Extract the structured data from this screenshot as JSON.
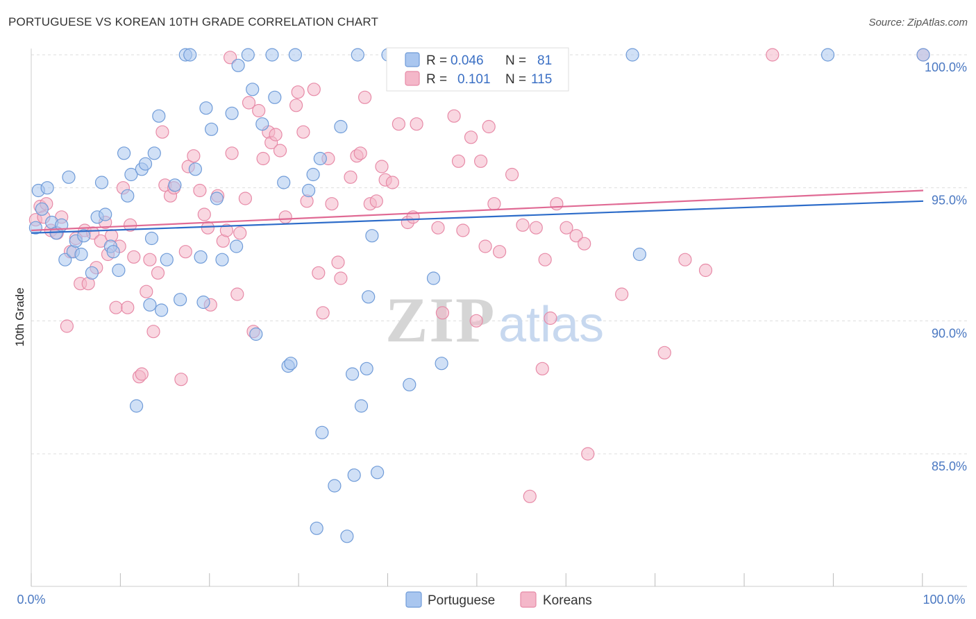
{
  "title": "PORTUGUESE VS KOREAN 10TH GRADE CORRELATION CHART",
  "source": "Source: ZipAtlas.com",
  "watermark": {
    "zip": "ZIP",
    "atlas": "atlas"
  },
  "colors": {
    "portuguese_fill": "#a9c6ef",
    "portuguese_stroke": "#6f9bd8",
    "portuguese_line": "#2d6cc9",
    "koreans_fill": "#f4b7c9",
    "koreans_stroke": "#e78aa7",
    "koreans_line": "#e06a94",
    "axis_label": "#4a78c2",
    "grid": "#dddddd"
  },
  "legend": {
    "rows": [
      {
        "r_label": "R =",
        "r_value": "0.046",
        "n_label": "N =",
        "n_value": "81",
        "series": "portuguese"
      },
      {
        "r_label": "R =",
        "r_value": "0.101",
        "n_label": "N =",
        "n_value": "115",
        "series": "koreans"
      }
    ]
  },
  "bottom_legend": [
    "Portuguese",
    "Koreans"
  ],
  "chart_data": {
    "type": "scatter",
    "title": "PORTUGUESE VS KOREAN 10TH GRADE CORRELATION CHART",
    "xlabel": "",
    "ylabel": "10th Grade",
    "xlim": [
      0,
      100
    ],
    "ylim": [
      80.5,
      101.2
    ],
    "x_tick_labels": [
      "0.0%",
      "100.0%"
    ],
    "y_ticks": [
      85,
      90,
      95,
      100
    ],
    "y_tick_labels": [
      "85.0%",
      "90.0%",
      "95.0%",
      "100.0%"
    ],
    "grid": true,
    "legend_position": "top-center",
    "series": [
      {
        "name": "Portuguese",
        "r": 0.046,
        "n": 81,
        "trend": {
          "x": [
            0,
            100
          ],
          "y": [
            93.3,
            94.5
          ]
        },
        "points": [
          [
            0.5,
            93.5
          ],
          [
            0.8,
            94.9
          ],
          [
            1.2,
            94.2
          ],
          [
            1.8,
            95.0
          ],
          [
            2.3,
            93.7
          ],
          [
            2.8,
            93.3
          ],
          [
            3.4,
            93.6
          ],
          [
            3.8,
            92.3
          ],
          [
            4.2,
            95.4
          ],
          [
            4.7,
            92.6
          ],
          [
            5.0,
            93.0
          ],
          [
            5.6,
            92.5
          ],
          [
            5.9,
            93.2
          ],
          [
            6.8,
            91.8
          ],
          [
            7.4,
            93.9
          ],
          [
            7.9,
            95.2
          ],
          [
            8.3,
            94.0
          ],
          [
            8.9,
            92.8
          ],
          [
            9.2,
            92.6
          ],
          [
            9.8,
            91.9
          ],
          [
            10.4,
            96.3
          ],
          [
            10.8,
            94.7
          ],
          [
            11.2,
            95.5
          ],
          [
            11.8,
            86.8
          ],
          [
            12.4,
            95.7
          ],
          [
            12.8,
            95.9
          ],
          [
            13.3,
            90.6
          ],
          [
            13.8,
            96.3
          ],
          [
            14.3,
            97.7
          ],
          [
            14.6,
            90.4
          ],
          [
            15.2,
            92.3
          ],
          [
            16.1,
            95.1
          ],
          [
            16.7,
            90.8
          ],
          [
            17.3,
            100.0
          ],
          [
            17.8,
            100.0
          ],
          [
            18.4,
            95.7
          ],
          [
            19.0,
            92.4
          ],
          [
            19.3,
            90.7
          ],
          [
            19.6,
            98.0
          ],
          [
            20.2,
            97.2
          ],
          [
            20.8,
            94.6
          ],
          [
            21.4,
            92.3
          ],
          [
            22.5,
            97.8
          ],
          [
            23.0,
            92.8
          ],
          [
            23.2,
            99.6
          ],
          [
            24.3,
            100.0
          ],
          [
            24.8,
            98.7
          ],
          [
            25.2,
            89.5
          ],
          [
            25.9,
            97.4
          ],
          [
            27.0,
            100.0
          ],
          [
            27.3,
            98.4
          ],
          [
            28.3,
            95.2
          ],
          [
            28.8,
            88.3
          ],
          [
            29.1,
            88.4
          ],
          [
            29.6,
            100.0
          ],
          [
            31.1,
            94.9
          ],
          [
            31.6,
            95.5
          ],
          [
            32.4,
            96.1
          ],
          [
            32.6,
            85.8
          ],
          [
            34.0,
            83.8
          ],
          [
            34.7,
            97.3
          ],
          [
            35.4,
            81.9
          ],
          [
            36.2,
            84.2
          ],
          [
            36.6,
            100.0
          ],
          [
            37.6,
            88.2
          ],
          [
            37.8,
            90.9
          ],
          [
            37.0,
            86.8
          ],
          [
            38.2,
            93.2
          ],
          [
            38.8,
            84.3
          ],
          [
            42.4,
            87.6
          ],
          [
            45.1,
            91.6
          ],
          [
            46.0,
            88.4
          ],
          [
            48.2,
            100.0
          ],
          [
            32.0,
            82.2
          ],
          [
            40.0,
            100.0
          ],
          [
            67.4,
            100.0
          ],
          [
            68.2,
            92.5
          ],
          [
            89.3,
            100.0
          ],
          [
            100.0,
            100.0
          ],
          [
            13.5,
            93.1
          ],
          [
            36.0,
            88.0
          ]
        ]
      },
      {
        "name": "Koreans",
        "r": 0.101,
        "n": 115,
        "trend": {
          "x": [
            0,
            100
          ],
          "y": [
            93.4,
            94.9
          ]
        },
        "points": [
          [
            0.5,
            93.8
          ],
          [
            1.0,
            94.3
          ],
          [
            1.4,
            93.9
          ],
          [
            1.7,
            94.4
          ],
          [
            2.2,
            93.4
          ],
          [
            2.9,
            93.3
          ],
          [
            3.4,
            93.9
          ],
          [
            4.0,
            89.8
          ],
          [
            4.4,
            92.6
          ],
          [
            5.0,
            93.1
          ],
          [
            5.5,
            91.4
          ],
          [
            6.0,
            93.4
          ],
          [
            6.4,
            91.4
          ],
          [
            6.9,
            93.3
          ],
          [
            7.3,
            92.0
          ],
          [
            7.8,
            93.0
          ],
          [
            8.3,
            93.7
          ],
          [
            8.6,
            92.5
          ],
          [
            9.0,
            93.2
          ],
          [
            9.5,
            90.5
          ],
          [
            9.9,
            92.8
          ],
          [
            10.3,
            95.0
          ],
          [
            10.8,
            90.5
          ],
          [
            11.1,
            93.6
          ],
          [
            11.5,
            92.4
          ],
          [
            12.1,
            87.9
          ],
          [
            12.4,
            88.0
          ],
          [
            12.9,
            91.1
          ],
          [
            13.3,
            92.3
          ],
          [
            13.7,
            89.6
          ],
          [
            14.2,
            91.8
          ],
          [
            14.7,
            97.1
          ],
          [
            15.0,
            95.1
          ],
          [
            15.6,
            94.7
          ],
          [
            16.0,
            95.0
          ],
          [
            16.8,
            87.8
          ],
          [
            17.3,
            92.6
          ],
          [
            17.6,
            95.8
          ],
          [
            18.2,
            96.2
          ],
          [
            18.9,
            94.9
          ],
          [
            19.4,
            94.0
          ],
          [
            19.8,
            93.5
          ],
          [
            20.1,
            90.6
          ],
          [
            20.9,
            94.7
          ],
          [
            21.5,
            93.0
          ],
          [
            21.9,
            93.4
          ],
          [
            22.5,
            96.3
          ],
          [
            23.1,
            91.0
          ],
          [
            23.4,
            93.3
          ],
          [
            24.0,
            94.6
          ],
          [
            24.4,
            98.2
          ],
          [
            24.9,
            89.6
          ],
          [
            25.5,
            97.9
          ],
          [
            26.0,
            96.1
          ],
          [
            26.6,
            97.1
          ],
          [
            26.9,
            96.7
          ],
          [
            27.4,
            97.0
          ],
          [
            27.9,
            96.4
          ],
          [
            28.5,
            93.9
          ],
          [
            29.7,
            98.1
          ],
          [
            29.9,
            98.6
          ],
          [
            30.5,
            97.1
          ],
          [
            30.9,
            94.5
          ],
          [
            31.7,
            98.7
          ],
          [
            32.2,
            91.8
          ],
          [
            32.7,
            90.3
          ],
          [
            33.3,
            96.1
          ],
          [
            33.7,
            94.4
          ],
          [
            34.4,
            92.2
          ],
          [
            34.7,
            91.6
          ],
          [
            35.8,
            95.4
          ],
          [
            36.5,
            96.2
          ],
          [
            36.9,
            96.3
          ],
          [
            37.4,
            98.4
          ],
          [
            38.0,
            94.4
          ],
          [
            38.7,
            94.5
          ],
          [
            39.3,
            95.8
          ],
          [
            39.7,
            95.3
          ],
          [
            40.5,
            95.2
          ],
          [
            41.2,
            97.4
          ],
          [
            42.2,
            93.7
          ],
          [
            42.8,
            93.9
          ],
          [
            45.6,
            93.5
          ],
          [
            46.1,
            90.3
          ],
          [
            47.4,
            97.7
          ],
          [
            47.9,
            96.0
          ],
          [
            48.4,
            93.4
          ],
          [
            49.3,
            96.9
          ],
          [
            49.9,
            90.0
          ],
          [
            50.4,
            96.0
          ],
          [
            50.9,
            92.8
          ],
          [
            51.3,
            97.3
          ],
          [
            51.9,
            94.4
          ],
          [
            52.5,
            92.6
          ],
          [
            53.9,
            95.5
          ],
          [
            55.1,
            93.6
          ],
          [
            55.9,
            83.4
          ],
          [
            56.6,
            93.5
          ],
          [
            57.3,
            88.2
          ],
          [
            57.6,
            92.3
          ],
          [
            58.2,
            90.1
          ],
          [
            58.9,
            94.4
          ],
          [
            60.0,
            93.5
          ],
          [
            61.1,
            93.2
          ],
          [
            62.0,
            92.9
          ],
          [
            62.4,
            85.0
          ],
          [
            66.2,
            91.0
          ],
          [
            71.0,
            88.8
          ],
          [
            73.3,
            92.3
          ],
          [
            75.6,
            91.9
          ],
          [
            43.2,
            97.4
          ],
          [
            56.0,
            99.1
          ],
          [
            83.1,
            100.0
          ],
          [
            100.0,
            100.0
          ],
          [
            22.3,
            99.9
          ]
        ]
      }
    ]
  }
}
